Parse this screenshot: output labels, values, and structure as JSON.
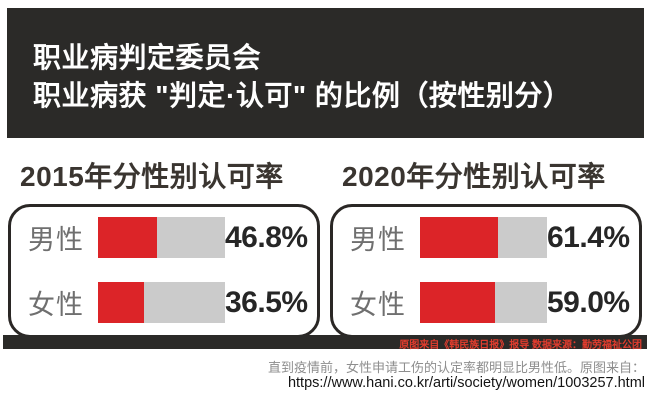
{
  "header": {
    "line1": "职业病判定委员会",
    "line2": "职业病获 \"判定·认可\" 的比例（按性别分）"
  },
  "source_strip": {
    "text": "原图来自《韩民族日报》报导 数据来源：勤劳福祉公团"
  },
  "caption": {
    "line1": "直到疫情前，女性申请工伤的认定率都明显比男性低。原图来自：",
    "line2": "https://www.hani.co.kr/arti/society/women/1003257.html"
  },
  "colors": {
    "header_bg": "#2b2a28",
    "bar_red": "#dc2428",
    "bar_track_gray": "#cbcbcb",
    "strip_text_red": "#e23c2e",
    "title_text": "#3a3530",
    "label_gray": "#6f6f6f",
    "value_black": "#262626",
    "caption_gray": "#8e8e8e"
  },
  "chart_data": [
    {
      "type": "bar",
      "orientation": "horizontal",
      "title": "2015年分性别认可率",
      "categories": [
        "男性",
        "女性"
      ],
      "values": [
        46.8,
        36.5
      ],
      "value_labels": [
        "46.8%",
        "36.5%"
      ],
      "xlim": [
        0,
        100
      ],
      "grid": false,
      "legend": "none",
      "bar_color": "#dc2428",
      "track_color": "#cbcbcb"
    },
    {
      "type": "bar",
      "orientation": "horizontal",
      "title": "2020年分性别认可率",
      "categories": [
        "男性",
        "女性"
      ],
      "values": [
        61.4,
        59.0
      ],
      "value_labels": [
        "61.4%",
        "59.0%"
      ],
      "xlim": [
        0,
        100
      ],
      "grid": false,
      "legend": "none",
      "bar_color": "#dc2428",
      "track_color": "#cbcbcb"
    }
  ]
}
